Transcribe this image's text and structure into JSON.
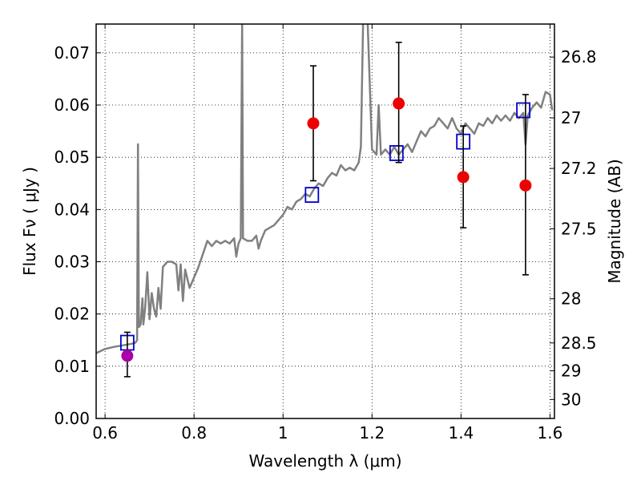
{
  "chart_data": {
    "type": "scatter",
    "xlabel": "Wavelength  λ (μm)",
    "ylabel": "Flux  Fν ( μJy )",
    "ylabel_right": "Magnitude (AB)",
    "xlim": [
      0.58,
      1.61
    ],
    "ylim": [
      0.0,
      0.0755
    ],
    "grid": true,
    "x_ticks": [
      0.6,
      0.8,
      1.0,
      1.2,
      1.4,
      1.6
    ],
    "x_tick_labels": [
      "0.6",
      "0.8",
      "1",
      "1.2",
      "1.4",
      "1.6"
    ],
    "y_ticks": [
      0.0,
      0.01,
      0.02,
      0.03,
      0.04,
      0.05,
      0.06,
      0.07
    ],
    "y_tick_labels": [
      "0.00",
      "0.01",
      "0.02",
      "0.03",
      "0.04",
      "0.05",
      "0.06",
      "0.07"
    ],
    "mag_ticks": [
      26.8,
      27,
      27.2,
      27.5,
      28,
      28.5,
      29,
      30
    ],
    "mag_tick_labels": [
      "26.8",
      "27",
      "27.2",
      "27.5",
      "28",
      "28.5",
      "29",
      "30"
    ],
    "model_spectrum": {
      "color": "#808080",
      "points": [
        [
          0.58,
          0.0125
        ],
        [
          0.6,
          0.0133
        ],
        [
          0.62,
          0.0137
        ],
        [
          0.64,
          0.014
        ],
        [
          0.66,
          0.0143
        ],
        [
          0.668,
          0.0145
        ],
        [
          0.672,
          0.015
        ],
        [
          0.674,
          0.0525
        ],
        [
          0.676,
          0.0175
        ],
        [
          0.68,
          0.018
        ],
        [
          0.684,
          0.023
        ],
        [
          0.686,
          0.018
        ],
        [
          0.69,
          0.021
        ],
        [
          0.695,
          0.028
        ],
        [
          0.7,
          0.019
        ],
        [
          0.705,
          0.024
        ],
        [
          0.71,
          0.021
        ],
        [
          0.715,
          0.0195
        ],
        [
          0.72,
          0.025
        ],
        [
          0.725,
          0.021
        ],
        [
          0.73,
          0.029
        ],
        [
          0.74,
          0.03
        ],
        [
          0.75,
          0.03
        ],
        [
          0.76,
          0.0295
        ],
        [
          0.765,
          0.0245
        ],
        [
          0.77,
          0.0295
        ],
        [
          0.775,
          0.0225
        ],
        [
          0.78,
          0.0285
        ],
        [
          0.79,
          0.025
        ],
        [
          0.8,
          0.027
        ],
        [
          0.81,
          0.029
        ],
        [
          0.82,
          0.0315
        ],
        [
          0.83,
          0.034
        ],
        [
          0.84,
          0.033
        ],
        [
          0.85,
          0.034
        ],
        [
          0.86,
          0.0335
        ],
        [
          0.87,
          0.034
        ],
        [
          0.88,
          0.0335
        ],
        [
          0.89,
          0.0345
        ],
        [
          0.895,
          0.031
        ],
        [
          0.9,
          0.0335
        ],
        [
          0.905,
          0.0345
        ],
        [
          0.908,
          0.076
        ],
        [
          0.91,
          0.0345
        ],
        [
          0.92,
          0.034
        ],
        [
          0.93,
          0.034
        ],
        [
          0.94,
          0.035
        ],
        [
          0.945,
          0.0325
        ],
        [
          0.95,
          0.034
        ],
        [
          0.96,
          0.036
        ],
        [
          0.97,
          0.0365
        ],
        [
          0.98,
          0.037
        ],
        [
          0.99,
          0.038
        ],
        [
          1.0,
          0.039
        ],
        [
          1.01,
          0.0405
        ],
        [
          1.02,
          0.04
        ],
        [
          1.03,
          0.0415
        ],
        [
          1.04,
          0.042
        ],
        [
          1.05,
          0.043
        ],
        [
          1.06,
          0.0425
        ],
        [
          1.07,
          0.044
        ],
        [
          1.08,
          0.045
        ],
        [
          1.09,
          0.0445
        ],
        [
          1.1,
          0.046
        ],
        [
          1.11,
          0.047
        ],
        [
          1.12,
          0.0465
        ],
        [
          1.13,
          0.0485
        ],
        [
          1.14,
          0.0475
        ],
        [
          1.15,
          0.048
        ],
        [
          1.16,
          0.0475
        ],
        [
          1.17,
          0.049
        ],
        [
          1.175,
          0.052
        ],
        [
          1.18,
          0.076
        ],
        [
          1.19,
          0.076
        ],
        [
          1.2,
          0.0515
        ],
        [
          1.21,
          0.0505
        ],
        [
          1.215,
          0.06
        ],
        [
          1.22,
          0.0505
        ],
        [
          1.23,
          0.0515
        ],
        [
          1.24,
          0.0505
        ],
        [
          1.25,
          0.052
        ],
        [
          1.26,
          0.0505
        ],
        [
          1.27,
          0.0515
        ],
        [
          1.28,
          0.0525
        ],
        [
          1.29,
          0.051
        ],
        [
          1.3,
          0.053
        ],
        [
          1.31,
          0.055
        ],
        [
          1.32,
          0.054
        ],
        [
          1.33,
          0.0555
        ],
        [
          1.34,
          0.056
        ],
        [
          1.35,
          0.0575
        ],
        [
          1.36,
          0.0565
        ],
        [
          1.37,
          0.0555
        ],
        [
          1.38,
          0.0575
        ],
        [
          1.39,
          0.0555
        ],
        [
          1.4,
          0.0545
        ],
        [
          1.41,
          0.0565
        ],
        [
          1.42,
          0.0555
        ],
        [
          1.43,
          0.0545
        ],
        [
          1.44,
          0.0565
        ],
        [
          1.45,
          0.056
        ],
        [
          1.46,
          0.0575
        ],
        [
          1.47,
          0.0565
        ],
        [
          1.48,
          0.058
        ],
        [
          1.49,
          0.057
        ],
        [
          1.5,
          0.058
        ],
        [
          1.51,
          0.057
        ],
        [
          1.52,
          0.0585
        ],
        [
          1.53,
          0.0575
        ],
        [
          1.54,
          0.0585
        ],
        [
          1.545,
          0.0525
        ],
        [
          1.55,
          0.058
        ],
        [
          1.56,
          0.0595
        ],
        [
          1.57,
          0.0605
        ],
        [
          1.58,
          0.0595
        ],
        [
          1.59,
          0.0625
        ],
        [
          1.6,
          0.062
        ],
        [
          1.605,
          0.059
        ]
      ]
    },
    "model_boxes": {
      "color": "#0000cc",
      "points": [
        [
          0.65,
          0.0145
        ],
        [
          1.065,
          0.0428
        ],
        [
          1.255,
          0.0508
        ],
        [
          1.405,
          0.053
        ],
        [
          1.54,
          0.059
        ]
      ]
    },
    "observed": [
      {
        "x": 0.65,
        "y": 0.012,
        "lo": 0.008,
        "hi": 0.0165,
        "color": "#aa00aa"
      },
      {
        "x": 1.068,
        "y": 0.0565,
        "lo": 0.0455,
        "hi": 0.0675,
        "color": "#ee0000"
      },
      {
        "x": 1.26,
        "y": 0.0603,
        "lo": 0.049,
        "hi": 0.072,
        "color": "#ee0000"
      },
      {
        "x": 1.405,
        "y": 0.0462,
        "lo": 0.0365,
        "hi": 0.056,
        "color": "#ee0000"
      },
      {
        "x": 1.545,
        "y": 0.0446,
        "lo": 0.0275,
        "hi": 0.062,
        "color": "#ee0000"
      }
    ]
  }
}
